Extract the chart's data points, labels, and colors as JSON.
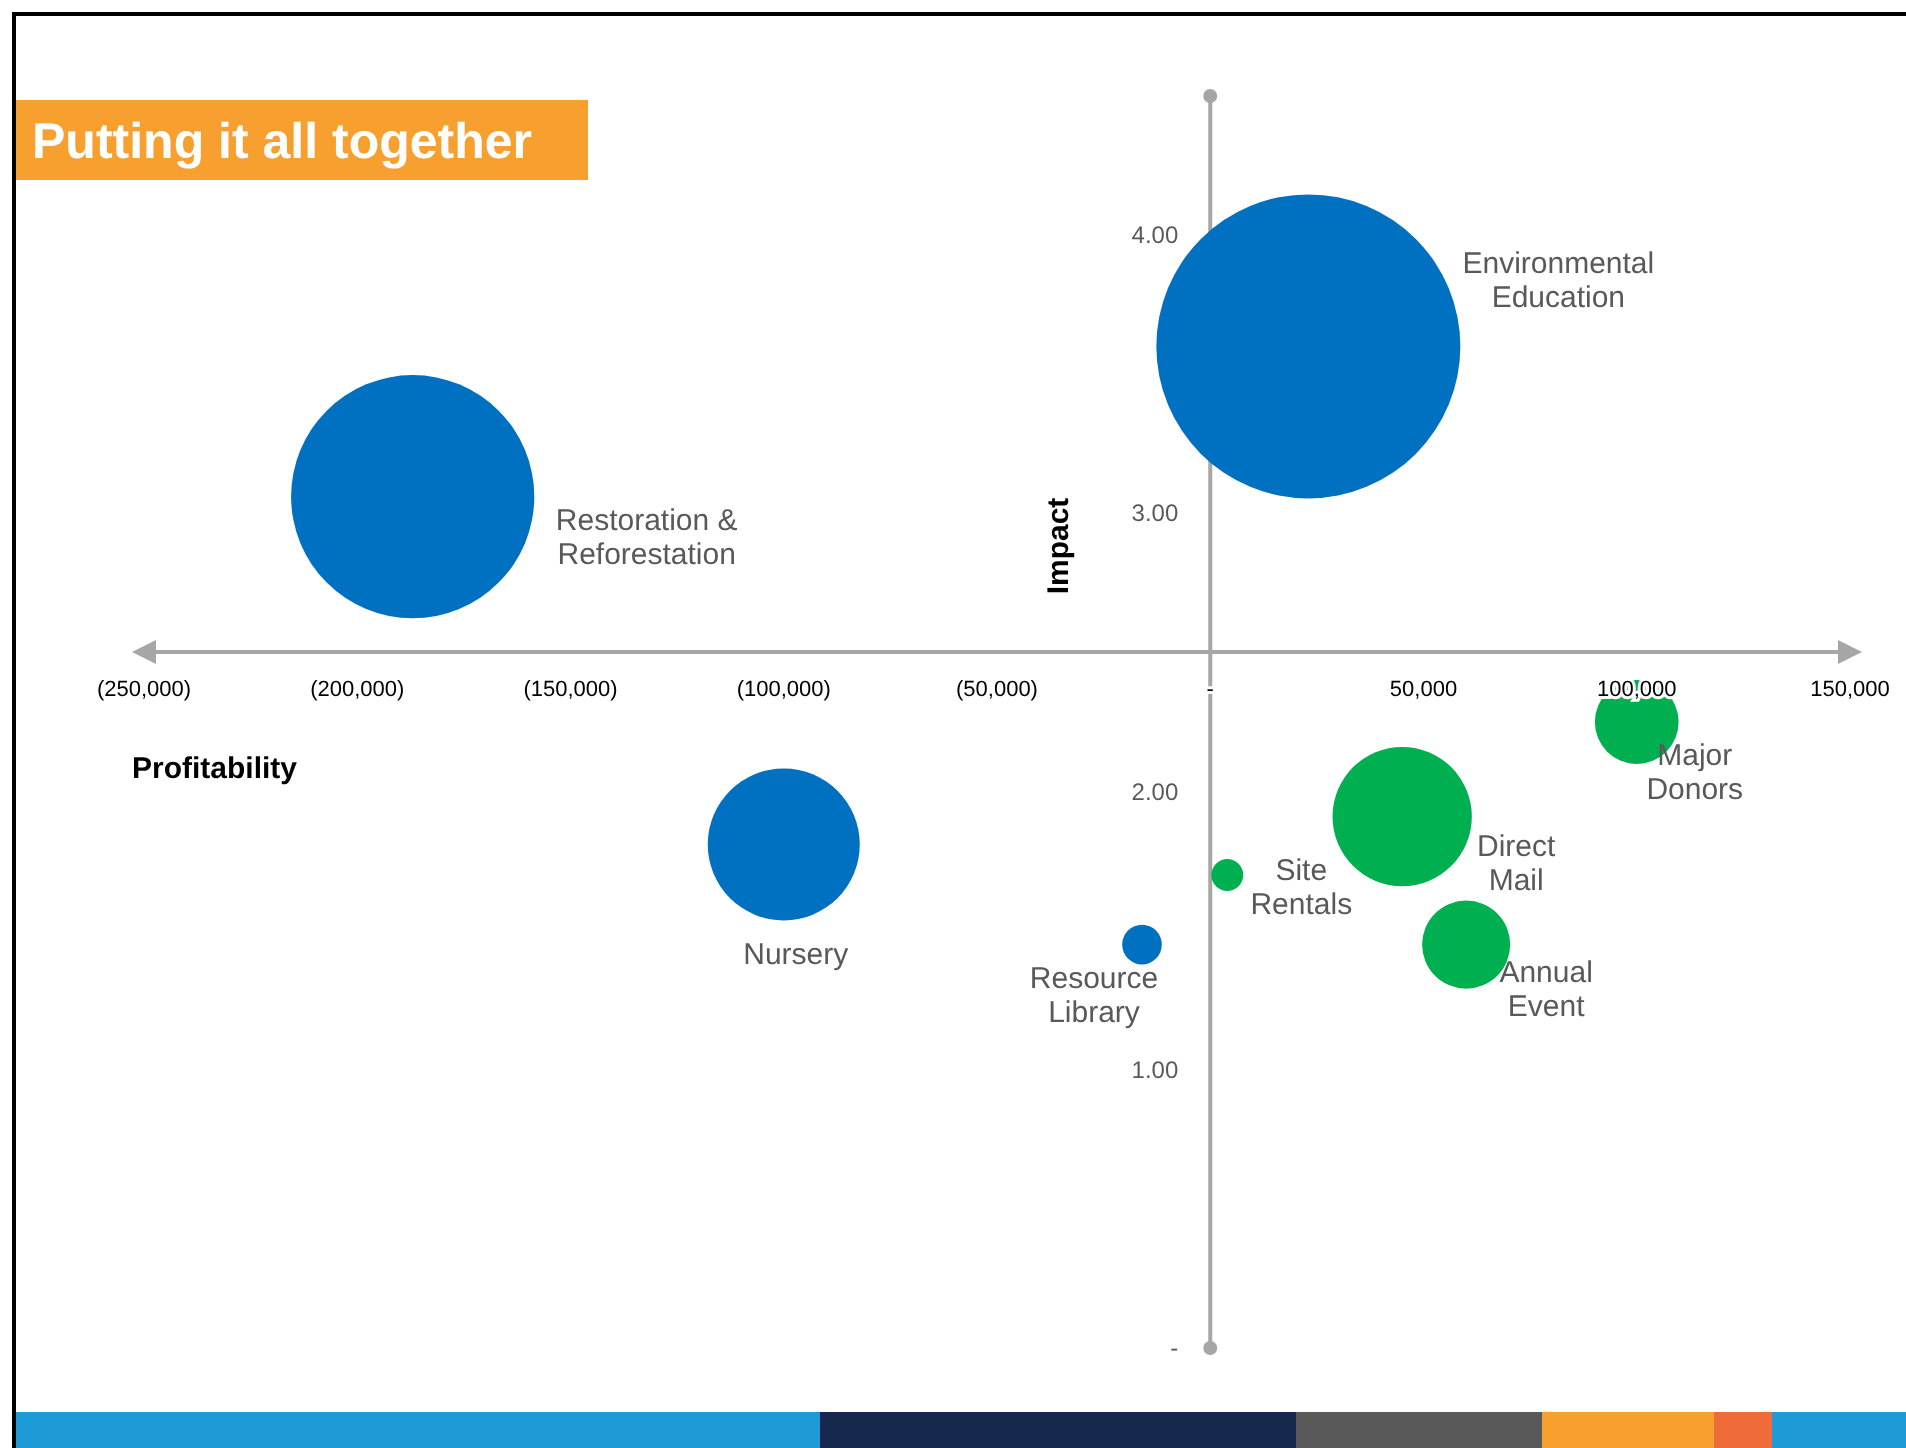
{
  "chart_data": {
    "type": "bubble",
    "title": "Putting it all together",
    "xlabel": "Profitability",
    "ylabel": "Impact",
    "xlim": [
      -250000,
      150000
    ],
    "ylim": [
      0,
      4.5
    ],
    "xticks": [
      {
        "value": -250000,
        "label": "(250,000)"
      },
      {
        "value": -200000,
        "label": "(200,000)"
      },
      {
        "value": -150000,
        "label": "(150,000)"
      },
      {
        "value": -100000,
        "label": "(100,000)"
      },
      {
        "value": -50000,
        "label": "(50,000)"
      },
      {
        "value": 0,
        "label": "-"
      },
      {
        "value": 50000,
        "label": "50,000"
      },
      {
        "value": 100000,
        "label": "100,000"
      },
      {
        "value": 150000,
        "label": "150,000"
      }
    ],
    "yticks": [
      {
        "value": 0,
        "label": "-"
      },
      {
        "value": 1,
        "label": "1.00"
      },
      {
        "value": 2,
        "label": "2.00"
      },
      {
        "value": 3,
        "label": "3.00"
      },
      {
        "value": 4,
        "label": "4.00"
      }
    ],
    "series": [
      {
        "color": "#0070c0",
        "x": [
          23000,
          -187000,
          -100000,
          -16000
        ],
        "values": [
          3.6,
          3.06,
          1.81,
          1.45
        ],
        "sizes": [
          1,
          0.64,
          0.25,
          0.017
        ]
      },
      {
        "color": "#00b050",
        "x": [
          4000,
          45000,
          60000,
          100000
        ],
        "values": [
          1.7,
          1.91,
          1.45,
          2.25
        ],
        "sizes": [
          0.011,
          0.21,
          0.084,
          0.076
        ]
      }
    ],
    "annotations": [
      "Environmental\nEducation",
      "Restoration &\nReforestation",
      "Nursery",
      "Resource\nLibrary",
      "Site\nRentals",
      "Direct\nMail",
      "Annual\nEvent",
      "Major\nDonors"
    ],
    "grid": false
  }
}
